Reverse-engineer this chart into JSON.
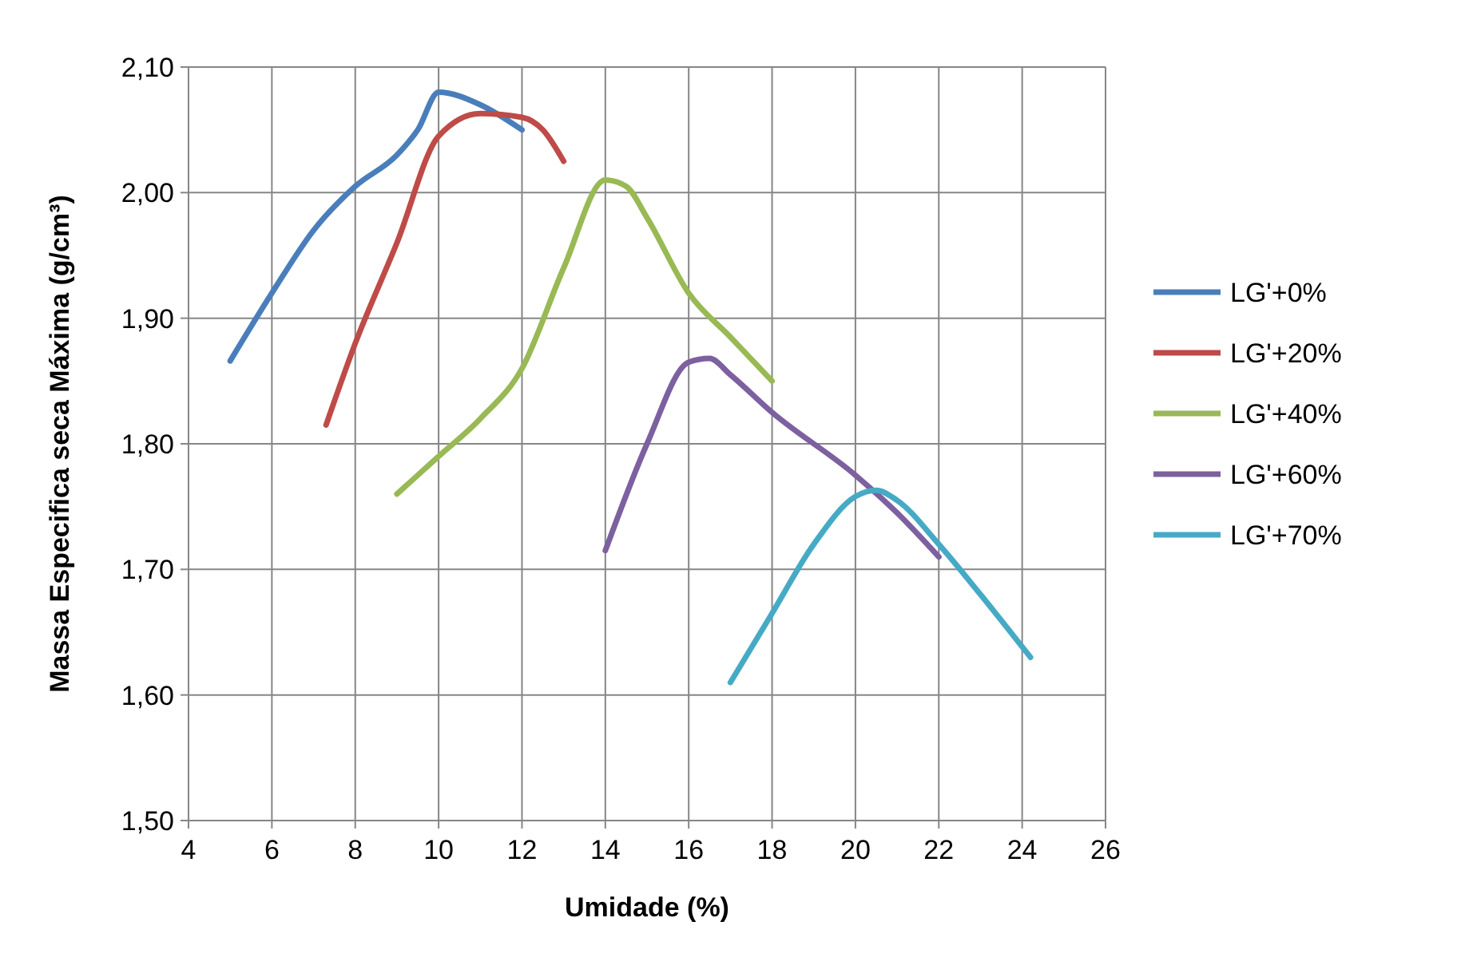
{
  "chart_data": {
    "type": "line",
    "xlabel": "Umidade (%)",
    "ylabel": "Massa Especifica seca Máxima (g/cm³)",
    "xlim": [
      4,
      26
    ],
    "xticks": [
      4,
      6,
      8,
      10,
      12,
      14,
      16,
      18,
      20,
      22,
      24,
      26
    ],
    "ylim": [
      1.5,
      2.1
    ],
    "yticks": [
      {
        "value": 1.5,
        "label": "1,50"
      },
      {
        "value": 1.6,
        "label": "1,60"
      },
      {
        "value": 1.7,
        "label": "1,70"
      },
      {
        "value": 1.8,
        "label": "1,80"
      },
      {
        "value": 1.9,
        "label": "1,90"
      },
      {
        "value": 2.0,
        "label": "2,00"
      },
      {
        "value": 2.1,
        "label": "2,10"
      }
    ],
    "grid": true,
    "legend": "right",
    "marker": "none",
    "line_style": "solid",
    "series": [
      {
        "name": "LG'+0%",
        "color": "#4a7ebb",
        "x": [
          5,
          6,
          7,
          8,
          9,
          9.5,
          10,
          11,
          12
        ],
        "values": [
          1.866,
          1.92,
          1.97,
          2.005,
          2.03,
          2.05,
          2.08,
          2.07,
          2.05
        ]
      },
      {
        "name": "LG'+20%",
        "color": "#be4b48",
        "x": [
          7.3,
          8,
          9,
          10,
          11,
          12,
          12.5,
          13
        ],
        "values": [
          1.815,
          1.88,
          1.96,
          2.045,
          2.063,
          2.06,
          2.05,
          2.025
        ]
      },
      {
        "name": "LG'+40%",
        "color": "#98b954",
        "x": [
          9,
          10,
          11,
          12,
          13,
          14,
          14.5,
          15,
          16,
          17,
          18
        ],
        "values": [
          1.76,
          1.79,
          1.82,
          1.86,
          1.94,
          2.01,
          2.005,
          1.98,
          1.92,
          1.885,
          1.85
        ]
      },
      {
        "name": "LG'+60%",
        "color": "#7d60a0",
        "x": [
          14,
          15,
          16,
          16.5,
          17,
          18,
          20,
          21,
          22
        ],
        "values": [
          1.715,
          1.8,
          1.865,
          1.868,
          1.855,
          1.825,
          1.775,
          1.745,
          1.71
        ]
      },
      {
        "name": "LG'+70%",
        "color": "#46aac5",
        "x": [
          17,
          18,
          19,
          20,
          20.5,
          21,
          22,
          23,
          24.2
        ],
        "values": [
          1.61,
          1.665,
          1.72,
          1.758,
          1.763,
          1.755,
          1.72,
          1.68,
          1.63
        ]
      }
    ]
  }
}
